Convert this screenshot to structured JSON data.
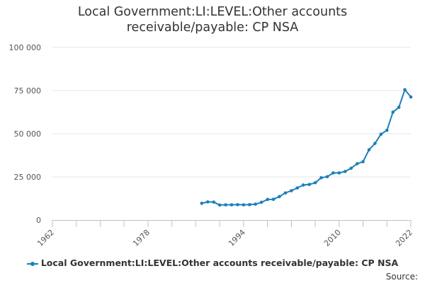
{
  "title_line1": "Local Government:LI:LEVEL:Other accounts",
  "title_line2": "receivable/payable: CP NSA",
  "legend_label": "Local Government:LI:LEVEL:Other accounts receivable/payable: CP NSA",
  "source_label": "Source:",
  "chart_data": {
    "type": "line",
    "title": "Local Government:LI:LEVEL:Other accounts receivable/payable: CP NSA",
    "xlim": [
      1962,
      2022
    ],
    "ylim": [
      0,
      100000
    ],
    "x_ticks": [
      "1962",
      "1978",
      "1994",
      "2010",
      "2022"
    ],
    "y_ticks": [
      "0",
      "25 000",
      "50 000",
      "75 000",
      "100 000"
    ],
    "grid": "horizontal",
    "legend_position": "bottom",
    "color": "#1c7fba",
    "series": [
      {
        "name": "Local Government:LI:LEVEL:Other accounts receivable/payable: CP NSA",
        "x": [
          1987,
          1988,
          1989,
          1990,
          1991,
          1992,
          1993,
          1994,
          1995,
          1996,
          1997,
          1998,
          1999,
          2000,
          2001,
          2002,
          2003,
          2004,
          2005,
          2006,
          2007,
          2008,
          2009,
          2010,
          2011,
          2012,
          2013,
          2014,
          2015,
          2016,
          2017,
          2018,
          2019,
          2020,
          2021,
          2022
        ],
        "values": [
          9700,
          10500,
          10400,
          8700,
          8800,
          8800,
          8900,
          8800,
          8900,
          9200,
          10300,
          11900,
          12000,
          13600,
          15700,
          17000,
          18600,
          20300,
          20600,
          21600,
          24500,
          25100,
          27300,
          27300,
          28100,
          30000,
          32600,
          33800,
          40700,
          44400,
          49700,
          52000,
          62500,
          65300,
          75500,
          71300
        ]
      }
    ]
  }
}
